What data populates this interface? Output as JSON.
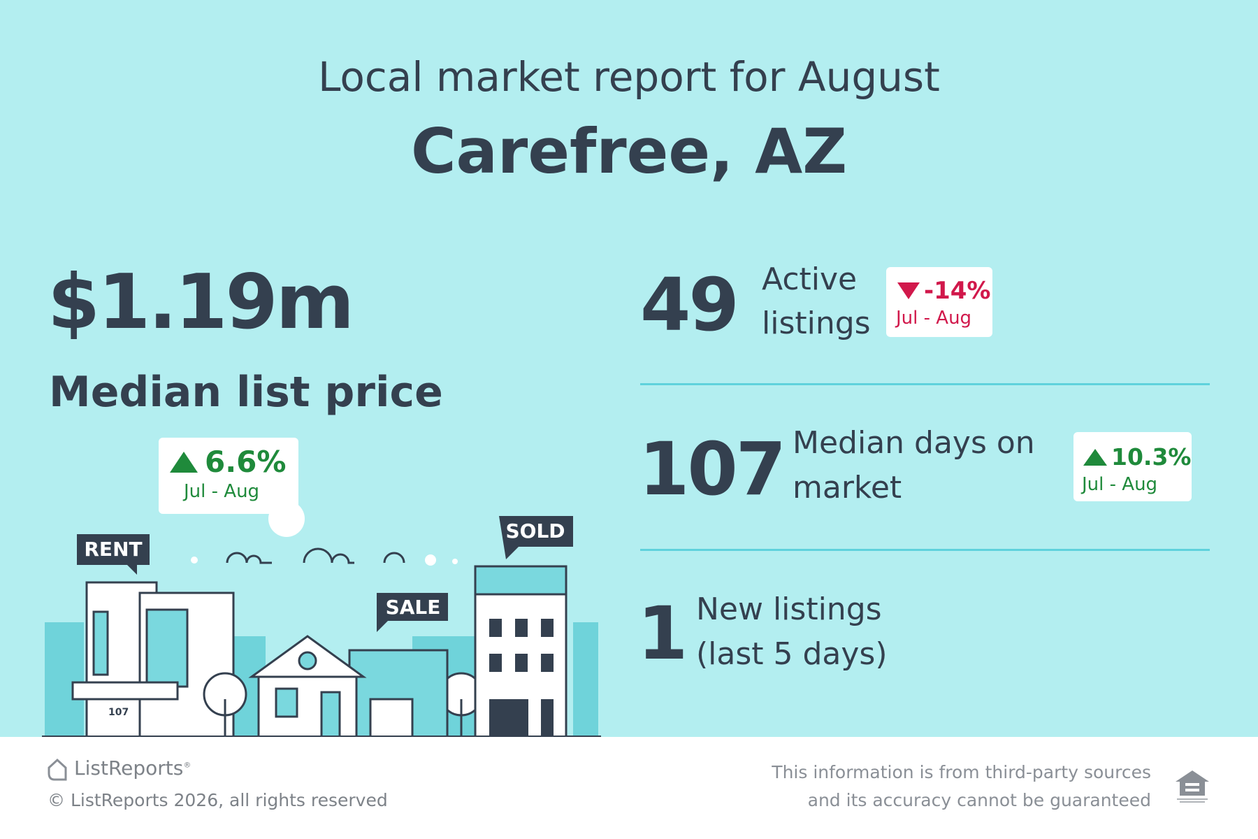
{
  "header": {
    "title": "Local market report for August",
    "location": "Carefree, AZ"
  },
  "price": {
    "value": "$1.19m",
    "label": "Median list price",
    "change": "6.6%",
    "period": "Jul - Aug"
  },
  "stats": [
    {
      "value": "49",
      "label_lines": [
        "Active",
        "listings"
      ],
      "change": "-14%",
      "period": "Jul - Aug"
    },
    {
      "value": "107",
      "label_lines": [
        "Median days on",
        "market"
      ],
      "change": "10.3%",
      "period": "Jul - Aug"
    },
    {
      "value": "1",
      "label_lines": [
        "New listings",
        "(last 5 days)"
      ]
    }
  ],
  "illustration": {
    "signs": [
      "RENT",
      "SALE",
      "SOLD"
    ],
    "house_number": "107"
  },
  "footer": {
    "brand": "ListReports",
    "brand_mark": "®",
    "copyright": "© ListReports 2026, all rights reserved",
    "disclaimer_lines": [
      "This information is from third-party sources",
      "and its accuracy cannot be guaranteed"
    ]
  }
}
